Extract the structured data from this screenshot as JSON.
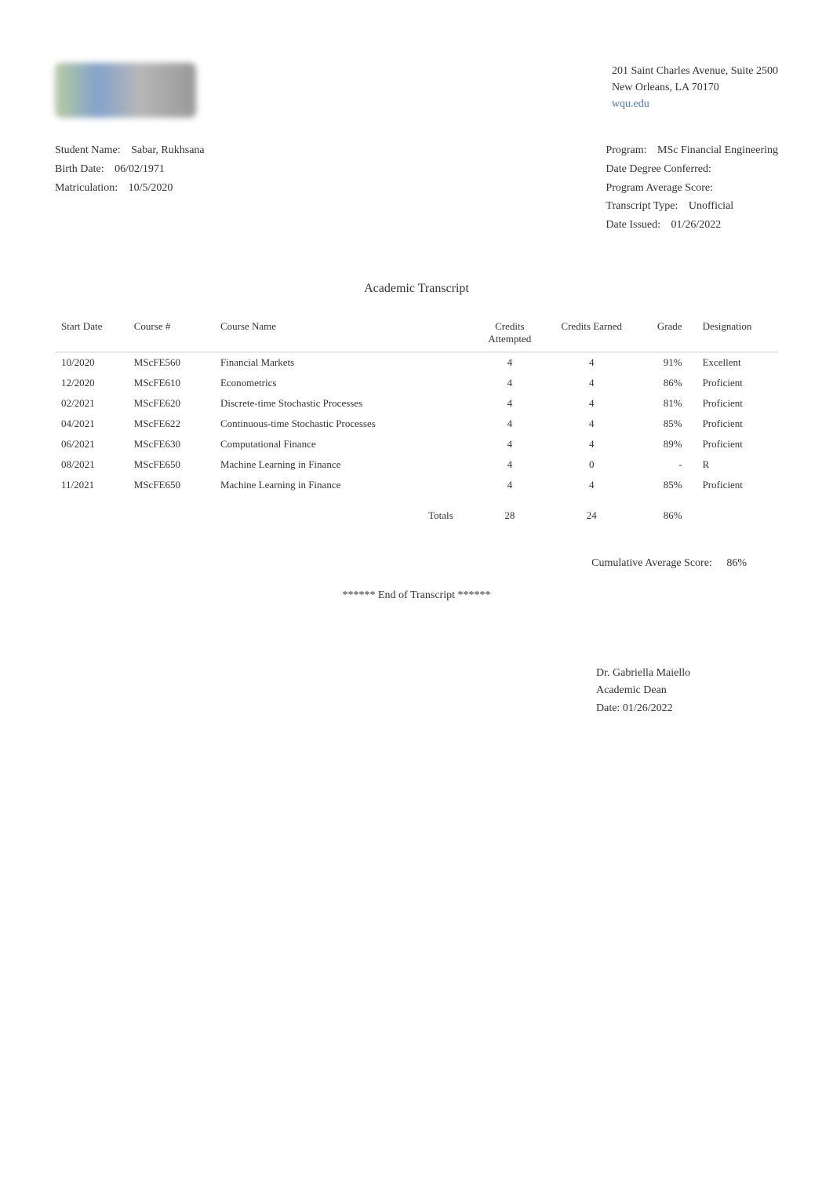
{
  "header": {
    "address_line1": "201 Saint Charles Avenue, Suite 2500",
    "address_line2": "New Orleans, LA 70170",
    "website": "wqu.edu"
  },
  "student_info": {
    "student_name_label": "Student Name:",
    "student_name": "Sabar, Rukhsana",
    "birth_date_label": "Birth Date:",
    "birth_date": "06/02/1971",
    "matriculation_label": "Matriculation:",
    "matriculation": "10/5/2020"
  },
  "program_info": {
    "program_label": "Program:",
    "program": "MSc Financial Engineering",
    "degree_conferred_label": "Date Degree Conferred:",
    "degree_conferred": "",
    "avg_score_label": "Program Average Score:",
    "avg_score": "",
    "transcript_type_label": "Transcript Type:",
    "transcript_type": "Unofficial",
    "date_issued_label": "Date Issued:",
    "date_issued": "01/26/2022"
  },
  "transcript": {
    "title": "Academic Transcript",
    "headers": {
      "start_date": "Start Date",
      "course_num": "Course #",
      "course_name": "Course Name",
      "credits_attempted": "Credits Attempted",
      "credits_earned": "Credits Earned",
      "grade": "Grade",
      "designation": "Designation"
    },
    "rows": [
      {
        "start_date": "10/2020",
        "course_num": "MScFE560",
        "course_name": "Financial Markets",
        "credits_attempted": "4",
        "credits_earned": "4",
        "grade": "91%",
        "designation": "Excellent"
      },
      {
        "start_date": "12/2020",
        "course_num": "MScFE610",
        "course_name": "Econometrics",
        "credits_attempted": "4",
        "credits_earned": "4",
        "grade": "86%",
        "designation": "Proficient"
      },
      {
        "start_date": "02/2021",
        "course_num": "MScFE620",
        "course_name": "Discrete-time Stochastic Processes",
        "credits_attempted": "4",
        "credits_earned": "4",
        "grade": "81%",
        "designation": "Proficient"
      },
      {
        "start_date": "04/2021",
        "course_num": "MScFE622",
        "course_name": "Continuous-time Stochastic Processes",
        "credits_attempted": "4",
        "credits_earned": "4",
        "grade": "85%",
        "designation": "Proficient"
      },
      {
        "start_date": "06/2021",
        "course_num": "MScFE630",
        "course_name": "Computational Finance",
        "credits_attempted": "4",
        "credits_earned": "4",
        "grade": "89%",
        "designation": "Proficient"
      },
      {
        "start_date": "08/2021",
        "course_num": "MScFE650",
        "course_name": "Machine Learning in Finance",
        "credits_attempted": "4",
        "credits_earned": "0",
        "grade": "-",
        "designation": "R"
      },
      {
        "start_date": "11/2021",
        "course_num": "MScFE650",
        "course_name": "Machine Learning in Finance",
        "credits_attempted": "4",
        "credits_earned": "4",
        "grade": "85%",
        "designation": "Proficient"
      }
    ],
    "totals": {
      "label": "Totals",
      "credits_attempted": "28",
      "credits_earned": "24",
      "grade": "86%"
    },
    "cumulative_label": "Cumulative Average Score:",
    "cumulative_value": "86%",
    "end_marker": "****** End of Transcript ******"
  },
  "signature": {
    "name": "Dr. Gabriella Maiello",
    "title": "Academic Dean",
    "date_label": "Date:",
    "date": "01/26/2022"
  },
  "colors": {
    "text": "#333333",
    "link": "#4a7ba6",
    "border": "#cccccc",
    "background": "#ffffff"
  }
}
